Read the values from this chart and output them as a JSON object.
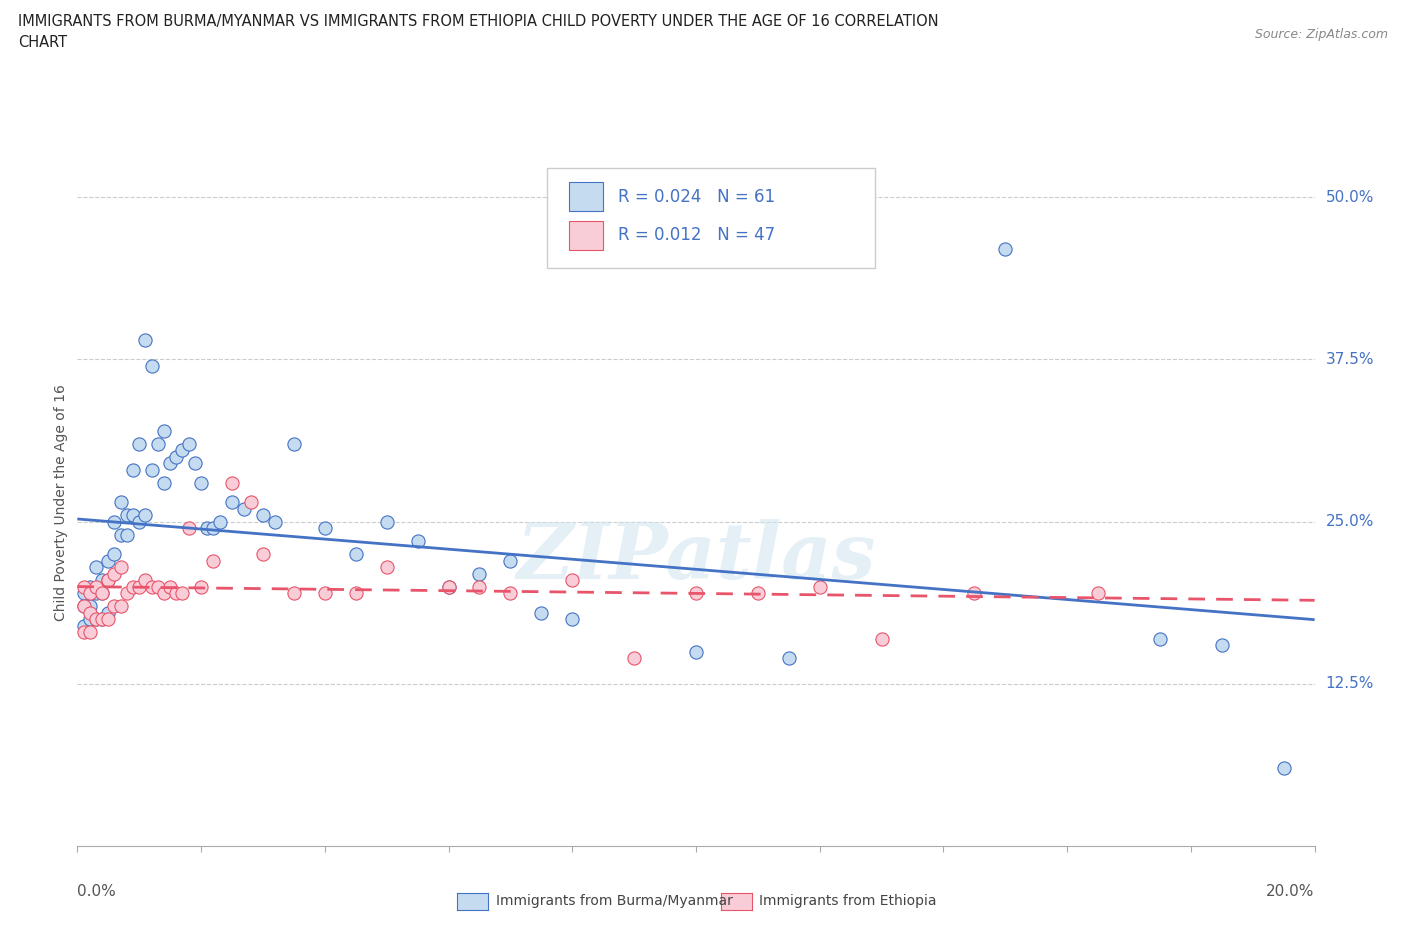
{
  "title_line1": "IMMIGRANTS FROM BURMA/MYANMAR VS IMMIGRANTS FROM ETHIOPIA CHILD POVERTY UNDER THE AGE OF 16 CORRELATION",
  "title_line2": "CHART",
  "source": "Source: ZipAtlas.com",
  "ylabel": "Child Poverty Under the Age of 16",
  "ytick_vals": [
    0.125,
    0.25,
    0.375,
    0.5
  ],
  "ytick_labels": [
    "12.5%",
    "25.0%",
    "37.5%",
    "50.0%"
  ],
  "xlim": [
    0.0,
    0.2
  ],
  "ylim": [
    0.0,
    0.53
  ],
  "legend_label1": "Immigrants from Burma/Myanmar",
  "legend_label2": "Immigrants from Ethiopia",
  "r1": "0.024",
  "n1": "61",
  "r2": "0.012",
  "n2": "47",
  "color_burma_fill": "#c5dcf0",
  "color_burma_edge": "#4472c4",
  "color_ethiopia_fill": "#f9cdd8",
  "color_ethiopia_edge": "#e8546a",
  "color_burma_line": "#4472c4",
  "color_ethiopia_line": "#e8546a",
  "color_r_text": "#4472c4",
  "watermark": "ZIPatlas",
  "burma_x": [
    0.001,
    0.001,
    0.001,
    0.002,
    0.002,
    0.002,
    0.003,
    0.003,
    0.003,
    0.004,
    0.004,
    0.004,
    0.005,
    0.005,
    0.005,
    0.006,
    0.006,
    0.007,
    0.007,
    0.008,
    0.008,
    0.009,
    0.009,
    0.01,
    0.01,
    0.011,
    0.011,
    0.012,
    0.012,
    0.013,
    0.014,
    0.014,
    0.015,
    0.016,
    0.017,
    0.018,
    0.019,
    0.02,
    0.021,
    0.022,
    0.023,
    0.025,
    0.027,
    0.03,
    0.032,
    0.035,
    0.04,
    0.045,
    0.05,
    0.055,
    0.06,
    0.065,
    0.07,
    0.075,
    0.08,
    0.1,
    0.115,
    0.15,
    0.175,
    0.185,
    0.195
  ],
  "burma_y": [
    0.195,
    0.185,
    0.17,
    0.2,
    0.185,
    0.175,
    0.215,
    0.195,
    0.175,
    0.205,
    0.195,
    0.175,
    0.22,
    0.205,
    0.18,
    0.25,
    0.225,
    0.265,
    0.24,
    0.255,
    0.24,
    0.29,
    0.255,
    0.31,
    0.25,
    0.39,
    0.255,
    0.37,
    0.29,
    0.31,
    0.32,
    0.28,
    0.295,
    0.3,
    0.305,
    0.31,
    0.295,
    0.28,
    0.245,
    0.245,
    0.25,
    0.265,
    0.26,
    0.255,
    0.25,
    0.31,
    0.245,
    0.225,
    0.25,
    0.235,
    0.2,
    0.21,
    0.22,
    0.18,
    0.175,
    0.15,
    0.145,
    0.46,
    0.16,
    0.155,
    0.06
  ],
  "ethiopia_x": [
    0.001,
    0.001,
    0.001,
    0.002,
    0.002,
    0.002,
    0.003,
    0.003,
    0.004,
    0.004,
    0.005,
    0.005,
    0.006,
    0.006,
    0.007,
    0.007,
    0.008,
    0.009,
    0.01,
    0.011,
    0.012,
    0.013,
    0.014,
    0.015,
    0.016,
    0.017,
    0.018,
    0.02,
    0.022,
    0.025,
    0.028,
    0.03,
    0.035,
    0.04,
    0.045,
    0.05,
    0.06,
    0.065,
    0.07,
    0.08,
    0.09,
    0.1,
    0.11,
    0.12,
    0.13,
    0.145,
    0.165
  ],
  "ethiopia_y": [
    0.2,
    0.185,
    0.165,
    0.195,
    0.18,
    0.165,
    0.2,
    0.175,
    0.195,
    0.175,
    0.205,
    0.175,
    0.21,
    0.185,
    0.215,
    0.185,
    0.195,
    0.2,
    0.2,
    0.205,
    0.2,
    0.2,
    0.195,
    0.2,
    0.195,
    0.195,
    0.245,
    0.2,
    0.22,
    0.28,
    0.265,
    0.225,
    0.195,
    0.195,
    0.195,
    0.215,
    0.2,
    0.2,
    0.195,
    0.205,
    0.145,
    0.195,
    0.195,
    0.2,
    0.16,
    0.195,
    0.195
  ]
}
